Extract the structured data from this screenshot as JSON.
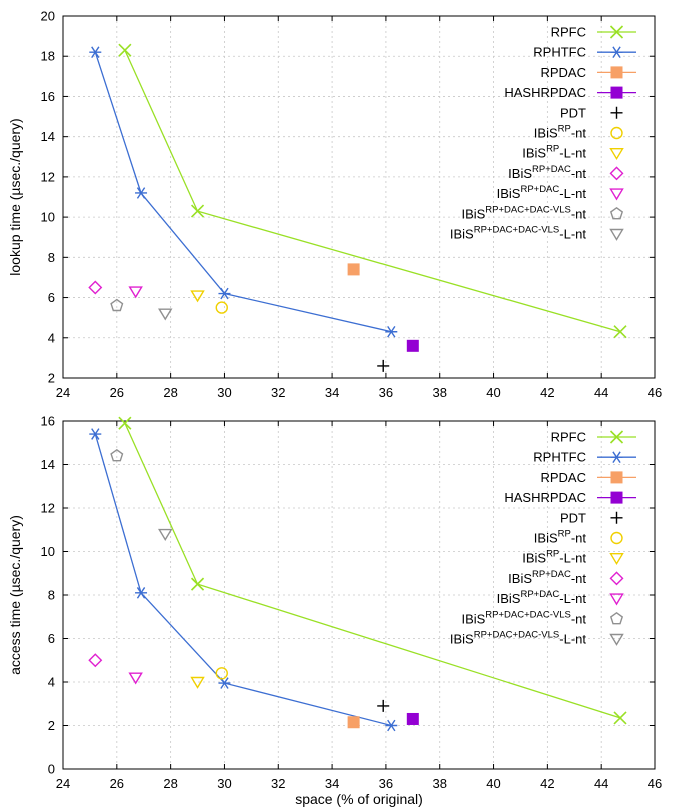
{
  "chart_data": [
    {
      "type": "line",
      "ylabel": "lookup time (µsec./query)",
      "xlabel": "",
      "xlim": [
        24,
        46
      ],
      "ylim": [
        2,
        20
      ],
      "xticks": [
        "24",
        "26",
        "28",
        "30",
        "32",
        "34",
        "36",
        "38",
        "40",
        "42",
        "44",
        "46"
      ],
      "yticks": [
        "2",
        "4",
        "6",
        "8",
        "10",
        "12",
        "14",
        "16",
        "18",
        "20"
      ],
      "grid": true,
      "legend_position": "top-right",
      "series": [
        {
          "name": "RPFC",
          "base": "RPFC",
          "sup": "",
          "suffix": "",
          "color": "#99e025",
          "marker": "x",
          "line": true,
          "x": [
            26.3,
            29.0,
            44.7
          ],
          "y": [
            18.3,
            10.3,
            4.3
          ]
        },
        {
          "name": "RPHTFC",
          "base": "RPHTFC",
          "sup": "",
          "suffix": "",
          "color": "#3c6ed2",
          "marker": "asterisk",
          "line": true,
          "x": [
            25.2,
            26.9,
            30.0,
            36.2
          ],
          "y": [
            18.2,
            11.2,
            6.2,
            4.3
          ]
        },
        {
          "name": "RPDAC",
          "base": "RPDAC",
          "sup": "",
          "suffix": "",
          "color": "#f7a066",
          "marker": "square",
          "line": false,
          "x": [
            34.8
          ],
          "y": [
            7.4
          ]
        },
        {
          "name": "HASHRPDAC",
          "base": "HASHRPDAC",
          "sup": "",
          "suffix": "",
          "color": "#9400d3",
          "marker": "square",
          "line": false,
          "x": [
            37.0
          ],
          "y": [
            3.6
          ]
        },
        {
          "name": "PDT",
          "base": "PDT",
          "sup": "",
          "suffix": "",
          "color": "#000000",
          "marker": "plus",
          "line": false,
          "x": [
            35.9
          ],
          "y": [
            2.6
          ]
        },
        {
          "name": "IBiS RP -nt",
          "base": "IBiS",
          "sup": "RP",
          "suffix": "-nt",
          "color": "#f0d000",
          "marker": "circle",
          "line": false,
          "x": [
            29.9
          ],
          "y": [
            5.5
          ]
        },
        {
          "name": "IBiS RP -L-nt",
          "base": "IBiS",
          "sup": "RP",
          "suffix": "-L-nt",
          "color": "#f0d000",
          "marker": "triangle-down",
          "line": false,
          "x": [
            29.0
          ],
          "y": [
            6.1
          ]
        },
        {
          "name": "IBiS RP+DAC -nt",
          "base": "IBiS",
          "sup": "RP+DAC",
          "suffix": "-nt",
          "color": "#e020d0",
          "marker": "diamond",
          "line": false,
          "x": [
            25.2
          ],
          "y": [
            6.5
          ]
        },
        {
          "name": "IBiS RP+DAC -L-nt",
          "base": "IBiS",
          "sup": "RP+DAC",
          "suffix": "-L-nt",
          "color": "#e020d0",
          "marker": "triangle-down",
          "line": false,
          "x": [
            26.7
          ],
          "y": [
            6.3
          ]
        },
        {
          "name": "IBiS RP+DAC+DAC-VLS -nt",
          "base": "IBiS",
          "sup": "RP+DAC+DAC-VLS",
          "suffix": "-nt",
          "color": "#909090",
          "marker": "pentagon",
          "line": false,
          "x": [
            26.0
          ],
          "y": [
            5.6
          ]
        },
        {
          "name": "IBiS RP+DAC+DAC-VLS -L-nt",
          "base": "IBiS",
          "sup": "RP+DAC+DAC-VLS",
          "suffix": "-L-nt",
          "color": "#909090",
          "marker": "triangle-down",
          "line": false,
          "x": [
            27.8
          ],
          "y": [
            5.2
          ]
        }
      ]
    },
    {
      "type": "line",
      "ylabel": "access time (µsec./query)",
      "xlabel": "space (% of original)",
      "xlim": [
        24,
        46
      ],
      "ylim": [
        0,
        16
      ],
      "xticks": [
        "24",
        "26",
        "28",
        "30",
        "32",
        "34",
        "36",
        "38",
        "40",
        "42",
        "44",
        "46"
      ],
      "yticks": [
        "0",
        "2",
        "4",
        "6",
        "8",
        "10",
        "12",
        "14",
        "16"
      ],
      "grid": true,
      "legend_position": "top-right",
      "series": [
        {
          "name": "RPFC",
          "base": "RPFC",
          "sup": "",
          "suffix": "",
          "color": "#99e025",
          "marker": "x",
          "line": true,
          "x": [
            26.3,
            29.0,
            44.7
          ],
          "y": [
            15.9,
            8.5,
            2.35
          ]
        },
        {
          "name": "RPHTFC",
          "base": "RPHTFC",
          "sup": "",
          "suffix": "",
          "color": "#3c6ed2",
          "marker": "asterisk",
          "line": true,
          "x": [
            25.2,
            26.9,
            30.0,
            36.2
          ],
          "y": [
            15.4,
            8.1,
            3.95,
            2.0
          ]
        },
        {
          "name": "RPDAC",
          "base": "RPDAC",
          "sup": "",
          "suffix": "",
          "color": "#f7a066",
          "marker": "square",
          "line": false,
          "x": [
            34.8
          ],
          "y": [
            2.15
          ]
        },
        {
          "name": "HASHRPDAC",
          "base": "HASHRPDAC",
          "sup": "",
          "suffix": "",
          "color": "#9400d3",
          "marker": "square",
          "line": false,
          "x": [
            37.0
          ],
          "y": [
            2.3
          ]
        },
        {
          "name": "PDT",
          "base": "PDT",
          "sup": "",
          "suffix": "",
          "color": "#000000",
          "marker": "plus",
          "line": false,
          "x": [
            35.9
          ],
          "y": [
            2.9
          ]
        },
        {
          "name": "IBiS RP -nt",
          "base": "IBiS",
          "sup": "RP",
          "suffix": "-nt",
          "color": "#f0d000",
          "marker": "circle",
          "line": false,
          "x": [
            29.9
          ],
          "y": [
            4.4
          ]
        },
        {
          "name": "IBiS RP -L-nt",
          "base": "IBiS",
          "sup": "RP",
          "suffix": "-L-nt",
          "color": "#f0d000",
          "marker": "triangle-down",
          "line": false,
          "x": [
            29.0
          ],
          "y": [
            4.0
          ]
        },
        {
          "name": "IBiS RP+DAC -nt",
          "base": "IBiS",
          "sup": "RP+DAC",
          "suffix": "-nt",
          "color": "#e020d0",
          "marker": "diamond",
          "line": false,
          "x": [
            25.2
          ],
          "y": [
            5.0
          ]
        },
        {
          "name": "IBiS RP+DAC -L-nt",
          "base": "IBiS",
          "sup": "RP+DAC",
          "suffix": "-L-nt",
          "color": "#e020d0",
          "marker": "triangle-down",
          "line": false,
          "x": [
            26.7
          ],
          "y": [
            4.2
          ]
        },
        {
          "name": "IBiS RP+DAC+DAC-VLS -nt",
          "base": "IBiS",
          "sup": "RP+DAC+DAC-VLS",
          "suffix": "-nt",
          "color": "#909090",
          "marker": "pentagon",
          "line": false,
          "x": [
            26.0
          ],
          "y": [
            14.4
          ]
        },
        {
          "name": "IBiS RP+DAC+DAC-VLS -L-nt",
          "base": "IBiS",
          "sup": "RP+DAC+DAC-VLS",
          "suffix": "-L-nt",
          "color": "#909090",
          "marker": "triangle-down",
          "line": false,
          "x": [
            27.8
          ],
          "y": [
            10.8
          ]
        }
      ]
    }
  ]
}
